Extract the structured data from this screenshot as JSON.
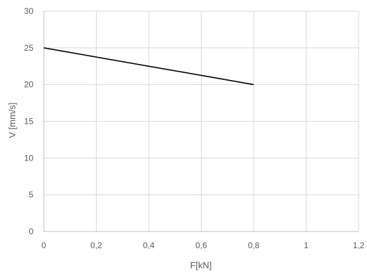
{
  "chart_data": {
    "type": "line",
    "xlabel": "F[kN]",
    "ylabel": "V [mm/s]",
    "xlim": [
      0,
      1.2
    ],
    "ylim": [
      0,
      30
    ],
    "xticks": [
      "0",
      "0,2",
      "0,4",
      "0,6",
      "0,8",
      "1",
      "1,2"
    ],
    "yticks": [
      "0",
      "5",
      "10",
      "15",
      "20",
      "25",
      "30"
    ],
    "grid": true,
    "legend": "none",
    "series": [
      {
        "x": [
          0,
          0.8
        ],
        "y": [
          25,
          20
        ],
        "color": "#000000"
      }
    ]
  }
}
